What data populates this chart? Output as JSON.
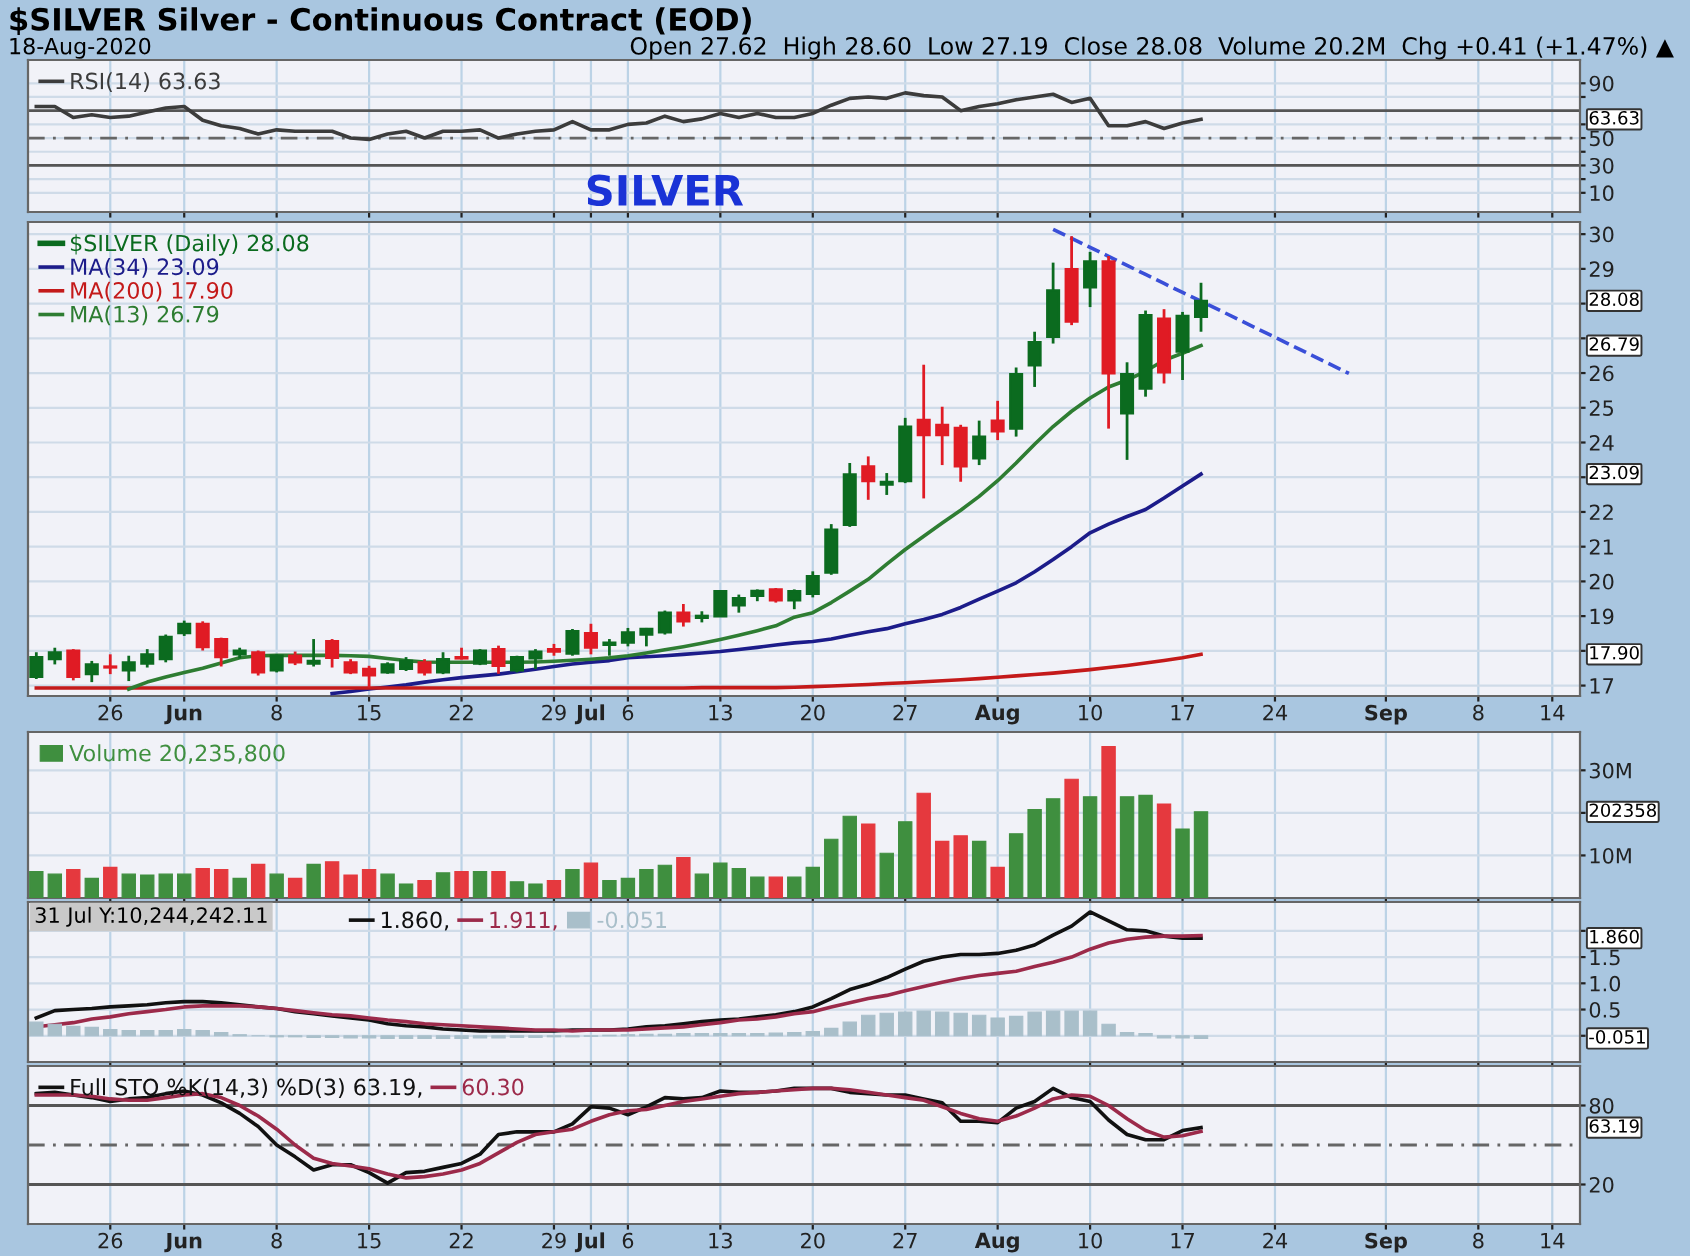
{
  "chart_data": [
    {
      "type": "line",
      "title": "$SILVER Silver - Continuous Contract (EOD)",
      "subtitle": "18-Aug-2020",
      "annotations": [
        "Open 27.62  High 28.60  Low 27.19  Close 28.08  Volume 20.2M  Chg +0.41 (+1.47%) ▲",
        "63.63"
      ],
      "categories": [
        null,
        null,
        null,
        null,
        null,
        null,
        null,
        null,
        null,
        null,
        null,
        null,
        null,
        null,
        null,
        null,
        null,
        null,
        null,
        null,
        null,
        null,
        null,
        null,
        null,
        null,
        null,
        null,
        null,
        null,
        null,
        null,
        null,
        null,
        null,
        null,
        null,
        null,
        null,
        null,
        null,
        null,
        null,
        null,
        null,
        null,
        null,
        null,
        null,
        null,
        null,
        null,
        null,
        null,
        null,
        null,
        null,
        null,
        null,
        null,
        null,
        null,
        null,
        null,
        null,
        null,
        null,
        null,
        null,
        null,
        null,
        null,
        null,
        null,
        null,
        null,
        null,
        null,
        null,
        null,
        null,
        null,
        null,
        null
      ],
      "tick_labels": "y",
      "ylim": [
        -4,
        107
      ],
      "yticks": [
        10,
        {
          "value": 20,
          "label": null
        },
        30,
        {
          "value": 40,
          "label": null
        },
        50,
        {
          "value": 60,
          "label": null
        },
        {
          "value": 80,
          "label": null
        },
        90
      ],
      "grid": true,
      "legend": "top left",
      "ref_lines": [
        {
          "axis": "y",
          "value": 70,
          "color": "#555555",
          "line_style": "solid"
        },
        {
          "axis": "y",
          "value": 30,
          "color": "#555555",
          "line_style": "solid"
        },
        {
          "axis": "y",
          "value": 50,
          "color": "#666666",
          "line_style": "dashed"
        }
      ],
      "series": [
        {
          "type": "line",
          "name": "RSI(14) 63.63",
          "color": "#3c3c3c",
          "values": [
            73,
            73,
            65,
            67,
            65,
            66,
            69,
            72,
            73,
            63,
            59,
            57,
            53,
            56,
            55,
            55,
            55,
            50,
            49,
            53,
            55,
            50,
            55,
            55,
            56,
            50,
            53,
            55,
            56,
            62,
            56,
            56,
            60,
            61,
            66,
            62,
            64,
            68,
            65,
            68,
            65,
            65,
            68,
            74,
            79,
            80,
            79,
            83,
            81,
            80,
            70,
            73,
            75,
            78,
            80,
            82,
            76,
            79,
            59,
            59,
            62,
            57,
            61,
            63.63,
            null,
            null,
            null,
            null,
            null,
            null,
            null,
            null,
            null,
            null,
            null,
            null,
            null,
            null,
            null,
            null,
            null,
            null,
            null,
            null
          ]
        }
      ]
    },
    {
      "type": "candlestick",
      "title": "SILVER",
      "annotations": [
        "28.08",
        "26.79",
        "23.09",
        "17.90"
      ],
      "categories": [
        null,
        null,
        null,
        null,
        "26",
        null,
        null,
        null,
        "Jun",
        null,
        null,
        null,
        null,
        "8",
        null,
        null,
        null,
        null,
        "15",
        null,
        null,
        null,
        null,
        "22",
        null,
        null,
        null,
        null,
        "29",
        null,
        "Jul",
        null,
        "6",
        null,
        null,
        null,
        null,
        "13",
        null,
        null,
        null,
        null,
        "20",
        null,
        null,
        null,
        null,
        "27",
        null,
        null,
        null,
        null,
        "Aug",
        null,
        null,
        null,
        null,
        "10",
        null,
        null,
        null,
        null,
        "17",
        null,
        null,
        null,
        null,
        "24",
        null,
        null,
        null,
        null,
        null,
        "Sep",
        null,
        null,
        null,
        null,
        "8",
        null,
        null,
        null,
        "14",
        null
      ],
      "ylim": [
        16.7,
        30.35
      ],
      "yticks": [
        17,
        {
          "value": 18,
          "label": null
        },
        19,
        20,
        21,
        22,
        {
          "value": 23,
          "label": null
        },
        24,
        25,
        26,
        {
          "value": 27,
          "label": null
        },
        {
          "value": 28,
          "label": null
        },
        29,
        30
      ],
      "grid": true,
      "legend": "top left",
      "series": [
        {
          "type": "candlestick",
          "name": "$SILVER (Daily) 28.08",
          "color": "#0b6b1f",
          "colors": [
            "#0b6b1f",
            "#0b6b1f",
            "#e01b24",
            "#0b6b1f",
            "#e01b24",
            "#0b6b1f",
            "#0b6b1f",
            "#0b6b1f",
            "#0b6b1f",
            "#e01b24",
            "#e01b24",
            "#0b6b1f",
            "#e01b24",
            "#0b6b1f",
            "#e01b24",
            "#0b6b1f",
            "#e01b24",
            "#e01b24",
            "#e01b24",
            "#0b6b1f",
            "#0b6b1f",
            "#e01b24",
            "#0b6b1f",
            "#e01b24",
            "#0b6b1f",
            "#e01b24",
            "#0b6b1f",
            "#0b6b1f",
            "#e01b24",
            "#0b6b1f",
            "#e01b24",
            "#0b6b1f",
            "#0b6b1f",
            "#0b6b1f",
            "#0b6b1f",
            "#e01b24",
            "#0b6b1f",
            "#0b6b1f",
            "#0b6b1f",
            "#0b6b1f",
            "#e01b24",
            "#0b6b1f",
            "#0b6b1f",
            "#0b6b1f",
            "#0b6b1f",
            "#e01b24",
            "#0b6b1f",
            "#0b6b1f",
            "#e01b24",
            "#e01b24",
            "#e01b24",
            "#0b6b1f",
            "#e01b24",
            "#0b6b1f",
            "#0b6b1f",
            "#0b6b1f",
            "#e01b24",
            "#0b6b1f",
            "#e01b24",
            "#0b6b1f",
            "#0b6b1f",
            "#e01b24",
            "#0b6b1f",
            "#0b6b1f",
            null,
            null,
            null,
            null,
            null,
            null,
            null,
            null,
            null,
            null,
            null,
            null,
            null,
            null,
            null,
            null,
            null,
            null,
            null,
            null
          ],
          "ohlc": [
            [
              17.25,
              17.96,
              17.19,
              17.82
            ],
            [
              17.76,
              18.09,
              17.61,
              17.96
            ],
            [
              18.01,
              18.05,
              17.15,
              17.25
            ],
            [
              17.33,
              17.71,
              17.1,
              17.61
            ],
            [
              17.55,
              17.9,
              17.33,
              17.52
            ],
            [
              17.44,
              17.86,
              17.13,
              17.67
            ],
            [
              17.63,
              18.05,
              17.52,
              17.9
            ],
            [
              17.76,
              18.47,
              17.67,
              18.4
            ],
            [
              18.51,
              18.87,
              18.43,
              18.78
            ],
            [
              18.78,
              18.85,
              18.01,
              18.11
            ],
            [
              18.34,
              18.38,
              17.55,
              17.82
            ],
            [
              17.9,
              18.09,
              17.78,
              18.01
            ],
            [
              17.96,
              18.01,
              17.29,
              17.38
            ],
            [
              17.44,
              17.9,
              17.38,
              17.86
            ],
            [
              17.86,
              17.98,
              17.59,
              17.67
            ],
            [
              17.63,
              18.34,
              17.55,
              17.71
            ],
            [
              18.28,
              18.34,
              17.52,
              17.8
            ],
            [
              17.67,
              17.76,
              17.33,
              17.38
            ],
            [
              17.48,
              17.57,
              16.94,
              17.29
            ],
            [
              17.38,
              17.67,
              17.34,
              17.61
            ],
            [
              17.48,
              17.82,
              17.42,
              17.71
            ],
            [
              17.67,
              17.76,
              17.29,
              17.38
            ],
            [
              17.38,
              17.96,
              17.33,
              17.76
            ],
            [
              17.82,
              18.09,
              17.75,
              17.78
            ],
            [
              17.63,
              18.05,
              17.59,
              18.01
            ],
            [
              18.05,
              18.15,
              17.34,
              17.57
            ],
            [
              17.44,
              17.86,
              17.38,
              17.82
            ],
            [
              17.78,
              18.05,
              17.48,
              17.98
            ],
            [
              18.05,
              18.2,
              17.86,
              17.98
            ],
            [
              17.92,
              18.63,
              17.86,
              18.57
            ],
            [
              18.51,
              18.78,
              17.9,
              18.09
            ],
            [
              18.17,
              18.34,
              17.86,
              18.24
            ],
            [
              18.24,
              18.66,
              18.13,
              18.53
            ],
            [
              18.47,
              18.66,
              18.13,
              18.63
            ],
            [
              18.53,
              19.16,
              18.47,
              19.1
            ],
            [
              19.1,
              19.35,
              18.7,
              18.85
            ],
            [
              18.95,
              19.14,
              18.82,
              19.01
            ],
            [
              18.99,
              19.72,
              18.99,
              19.72
            ],
            [
              19.31,
              19.62,
              19.1,
              19.52
            ],
            [
              19.58,
              19.77,
              19.43,
              19.73
            ],
            [
              19.77,
              19.81,
              19.39,
              19.45
            ],
            [
              19.45,
              19.77,
              19.2,
              19.72
            ],
            [
              19.64,
              20.29,
              19.54,
              20.15
            ],
            [
              20.25,
              21.65,
              20.19,
              21.49
            ],
            [
              21.63,
              23.41,
              21.57,
              23.08
            ],
            [
              23.31,
              23.6,
              22.35,
              22.89
            ],
            [
              22.79,
              23.12,
              22.49,
              22.87
            ],
            [
              22.89,
              24.71,
              22.83,
              24.46
            ],
            [
              24.65,
              26.24,
              22.39,
              24.21
            ],
            [
              24.51,
              25.03,
              23.35,
              24.21
            ],
            [
              24.42,
              24.51,
              22.87,
              23.31
            ],
            [
              23.54,
              24.63,
              23.35,
              24.17
            ],
            [
              24.63,
              25.2,
              24.07,
              24.32
            ],
            [
              24.4,
              26.16,
              24.17,
              25.97
            ],
            [
              26.22,
              27.19,
              25.6,
              26.89
            ],
            [
              27.04,
              29.18,
              26.85,
              28.38
            ],
            [
              28.99,
              29.94,
              27.38,
              27.48
            ],
            [
              28.47,
              29.49,
              27.9,
              29.22
            ],
            [
              29.22,
              29.37,
              24.4,
              25.99
            ],
            [
              24.84,
              26.31,
              23.5,
              25.97
            ],
            [
              25.55,
              27.8,
              25.32,
              27.67
            ],
            [
              27.57,
              27.84,
              25.7,
              26.02
            ],
            [
              26.62,
              27.76,
              25.8,
              27.65
            ],
            [
              27.62,
              28.6,
              27.19,
              28.08
            ],
            null,
            null,
            null,
            null,
            null,
            null,
            null,
            null,
            null,
            null,
            null,
            null,
            null,
            null,
            null,
            null,
            null,
            null,
            null,
            null
          ]
        },
        {
          "type": "line",
          "name": "MA(34) 23.09",
          "color": "#1c1c8a",
          "values": [
            null,
            null,
            null,
            null,
            null,
            null,
            null,
            null,
            null,
            null,
            null,
            null,
            null,
            null,
            null,
            null,
            16.77,
            16.83,
            16.9,
            16.96,
            17.02,
            17.1,
            17.17,
            17.23,
            17.28,
            17.33,
            17.4,
            17.47,
            17.55,
            17.62,
            17.67,
            17.72,
            17.8,
            17.83,
            17.86,
            17.9,
            17.94,
            17.98,
            18.04,
            18.1,
            18.17,
            18.23,
            18.27,
            18.34,
            18.45,
            18.55,
            18.64,
            18.78,
            18.9,
            19.05,
            19.25,
            19.49,
            19.72,
            19.96,
            20.28,
            20.63,
            21.0,
            21.4,
            21.65,
            21.87,
            22.07,
            22.4,
            22.75,
            23.09,
            null,
            null,
            null,
            null,
            null,
            null,
            null,
            null,
            null,
            null,
            null,
            null,
            null,
            null,
            null,
            null,
            null,
            null,
            null,
            null
          ]
        },
        {
          "type": "line",
          "name": "MA(200) 17.90",
          "color": "#c41a1a",
          "values": [
            16.93,
            16.93,
            16.93,
            16.93,
            16.93,
            16.93,
            16.93,
            16.93,
            16.93,
            16.93,
            16.93,
            16.93,
            16.93,
            16.93,
            16.93,
            16.93,
            16.93,
            16.93,
            16.93,
            16.93,
            16.93,
            16.93,
            16.93,
            16.93,
            16.93,
            16.93,
            16.93,
            16.93,
            16.93,
            16.93,
            16.93,
            16.93,
            16.93,
            16.93,
            16.93,
            16.93,
            16.94,
            16.94,
            16.94,
            16.94,
            16.94,
            16.95,
            16.97,
            16.99,
            17.01,
            17.03,
            17.06,
            17.08,
            17.11,
            17.14,
            17.17,
            17.2,
            17.24,
            17.28,
            17.32,
            17.36,
            17.41,
            17.46,
            17.52,
            17.58,
            17.65,
            17.72,
            17.8,
            17.9,
            null,
            null,
            null,
            null,
            null,
            null,
            null,
            null,
            null,
            null,
            null,
            null,
            null,
            null,
            null,
            null,
            null,
            null,
            null,
            null
          ]
        },
        {
          "type": "line",
          "name": "MA(13) 26.79",
          "color": "#2e7d32",
          "values": [
            null,
            null,
            null,
            null,
            null,
            16.9,
            17.1,
            17.25,
            17.38,
            17.5,
            17.65,
            17.8,
            17.86,
            17.87,
            17.87,
            17.87,
            17.87,
            17.86,
            17.84,
            17.78,
            17.72,
            17.68,
            17.67,
            17.67,
            17.67,
            17.67,
            17.67,
            17.68,
            17.7,
            17.73,
            17.76,
            17.8,
            17.86,
            17.94,
            18.03,
            18.12,
            18.22,
            18.33,
            18.45,
            18.58,
            18.72,
            18.97,
            19.1,
            19.39,
            19.72,
            20.06,
            20.5,
            20.92,
            21.3,
            21.68,
            22.05,
            22.45,
            22.9,
            23.41,
            23.95,
            24.46,
            24.9,
            25.28,
            25.6,
            25.8,
            26.05,
            26.37,
            26.57,
            26.79,
            null,
            null,
            null,
            null,
            null,
            null,
            null,
            null,
            null,
            null,
            null,
            null,
            null,
            null,
            null,
            null,
            null,
            null,
            null,
            null
          ]
        },
        {
          "type": "line",
          "color": "#3a4fd8",
          "line_style": "dashed",
          "values": [
            null,
            null,
            null,
            null,
            null,
            null,
            null,
            null,
            null,
            null,
            null,
            null,
            null,
            null,
            null,
            null,
            null,
            null,
            null,
            null,
            null,
            null,
            null,
            null,
            null,
            null,
            null,
            null,
            null,
            null,
            null,
            null,
            null,
            null,
            null,
            null,
            null,
            null,
            null,
            null,
            null,
            null,
            null,
            null,
            null,
            null,
            null,
            null,
            null,
            null,
            null,
            null,
            null,
            null,
            null,
            30.14,
            29.88,
            29.62,
            29.36,
            29.1,
            28.84,
            28.58,
            28.32,
            28.07,
            27.81,
            27.55,
            27.29,
            27.03,
            26.77,
            26.51,
            26.25,
            25.99,
            null,
            null,
            null,
            null,
            null,
            null,
            null,
            null,
            null,
            null,
            null,
            null
          ]
        }
      ]
    },
    {
      "type": "bar",
      "annotations": [
        "202358"
      ],
      "categories": [
        null,
        null,
        null,
        null,
        null,
        null,
        null,
        null,
        null,
        null,
        null,
        null,
        null,
        null,
        null,
        null,
        null,
        null,
        null,
        null,
        null,
        null,
        null,
        null,
        null,
        null,
        null,
        null,
        null,
        null,
        null,
        null,
        null,
        null,
        null,
        null,
        null,
        null,
        null,
        null,
        null,
        null,
        null,
        null,
        null,
        null,
        null,
        null,
        null,
        null,
        null,
        null,
        null,
        null,
        null,
        null,
        null,
        null,
        null,
        null,
        null,
        null,
        null,
        null,
        null,
        null,
        null,
        null,
        null,
        null,
        null,
        null,
        null,
        null,
        null,
        null,
        null,
        null,
        null,
        null,
        null,
        null,
        null,
        null
      ],
      "tick_labels": "y",
      "ylim": [
        0,
        39
      ],
      "yticks": [
        {
          "value": 10,
          "label": "10M"
        },
        {
          "value": 20,
          "label": null
        },
        {
          "value": 30,
          "label": "30M"
        }
      ],
      "grid": true,
      "legend": "top left",
      "series": [
        {
          "type": "bar",
          "name": "Volume 20,235,800",
          "color": "#3f8f3f",
          "colors": [
            "#3f8f3f",
            "#3f8f3f",
            "#e5393e",
            "#3f8f3f",
            "#e5393e",
            "#3f8f3f",
            "#3f8f3f",
            "#3f8f3f",
            "#3f8f3f",
            "#e5393e",
            "#e5393e",
            "#3f8f3f",
            "#e5393e",
            "#3f8f3f",
            "#e5393e",
            "#3f8f3f",
            "#e5393e",
            "#e5393e",
            "#e5393e",
            "#3f8f3f",
            "#3f8f3f",
            "#e5393e",
            "#3f8f3f",
            "#e5393e",
            "#3f8f3f",
            "#e5393e",
            "#3f8f3f",
            "#3f8f3f",
            "#e5393e",
            "#3f8f3f",
            "#e5393e",
            "#3f8f3f",
            "#3f8f3f",
            "#3f8f3f",
            "#3f8f3f",
            "#e5393e",
            "#3f8f3f",
            "#3f8f3f",
            "#3f8f3f",
            "#3f8f3f",
            "#e5393e",
            "#3f8f3f",
            "#3f8f3f",
            "#3f8f3f",
            "#3f8f3f",
            "#e5393e",
            "#3f8f3f",
            "#3f8f3f",
            "#e5393e",
            "#e5393e",
            "#e5393e",
            "#3f8f3f",
            "#e5393e",
            "#3f8f3f",
            "#3f8f3f",
            "#3f8f3f",
            "#e5393e",
            "#3f8f3f",
            "#e5393e",
            "#3f8f3f",
            "#3f8f3f",
            "#e5393e",
            "#3f8f3f",
            "#3f8f3f",
            null,
            null,
            null,
            null,
            null,
            null,
            null,
            null,
            null,
            null,
            null,
            null,
            null,
            null,
            null,
            null,
            null,
            null,
            null,
            null
          ],
          "values": [
            6.2,
            5.6,
            6.7,
            4.6,
            7.2,
            5.6,
            5.4,
            5.6,
            5.6,
            6.9,
            6.7,
            4.6,
            7.9,
            5.6,
            4.6,
            7.9,
            8.5,
            5.4,
            6.7,
            5.6,
            3.3,
            4.1,
            5.9,
            6.2,
            6.2,
            6.2,
            3.8,
            3.3,
            4.1,
            6.7,
            8.2,
            4.1,
            4.6,
            6.7,
            7.7,
            9.5,
            5.6,
            8.2,
            6.9,
            4.9,
            4.9,
            4.9,
            7.2,
            13.8,
            19.2,
            17.4,
            10.5,
            17.9,
            24.6,
            13.3,
            14.6,
            13.3,
            7.2,
            15.1,
            20.8,
            23.3,
            27.9,
            23.8,
            35.6,
            23.8,
            24.1,
            22.1,
            16.2,
            20.2358,
            null,
            null,
            null,
            null,
            null,
            null,
            null,
            null,
            null,
            null,
            null,
            null,
            null,
            null,
            null,
            null,
            null,
            null,
            null,
            null
          ]
        }
      ]
    },
    {
      "type": "line",
      "annotations": [
        "31 Jul Y:10,244,242.11",
        "1.860",
        "-0.051"
      ],
      "categories": [
        null,
        null,
        null,
        null,
        null,
        null,
        null,
        null,
        null,
        null,
        null,
        null,
        null,
        null,
        null,
        null,
        null,
        null,
        null,
        null,
        null,
        null,
        null,
        null,
        null,
        null,
        null,
        null,
        null,
        null,
        null,
        null,
        null,
        null,
        null,
        null,
        null,
        null,
        null,
        null,
        null,
        null,
        null,
        null,
        null,
        null,
        null,
        null,
        null,
        null,
        null,
        null,
        null,
        null,
        null,
        null,
        null,
        null,
        null,
        null,
        null,
        null,
        null,
        null,
        null,
        null,
        null,
        null,
        null,
        null,
        null,
        null,
        null,
        null,
        null,
        null,
        null,
        null,
        null,
        null,
        null,
        null,
        null,
        null
      ],
      "tick_labels": "y",
      "ylim": [
        -0.5,
        2.55
      ],
      "yticks": [
        {
          "value": 0,
          "label": null
        },
        0.5,
        {
          "value": 1,
          "label": "1.0"
        },
        1.5,
        {
          "value": 2,
          "label": null
        }
      ],
      "grid": true,
      "legend": "top left",
      "series": [
        {
          "type": "line",
          "name": "1.860,",
          "color": "#111111",
          "values": [
            0.34,
            0.48,
            0.5,
            0.52,
            0.55,
            0.57,
            0.59,
            0.63,
            0.65,
            0.65,
            0.63,
            0.59,
            0.55,
            0.52,
            0.46,
            0.42,
            0.38,
            0.34,
            0.3,
            0.23,
            0.19,
            0.17,
            0.13,
            0.11,
            0.09,
            0.09,
            0.09,
            0.09,
            0.09,
            0.11,
            0.11,
            0.11,
            0.13,
            0.17,
            0.19,
            0.23,
            0.27,
            0.3,
            0.32,
            0.36,
            0.4,
            0.46,
            0.55,
            0.71,
            0.88,
            0.98,
            1.11,
            1.27,
            1.42,
            1.5,
            1.55,
            1.55,
            1.57,
            1.63,
            1.73,
            1.92,
            2.09,
            2.36,
            2.19,
            2.02,
            2.0,
            1.9,
            1.86,
            1.86,
            null,
            null,
            null,
            null,
            null,
            null,
            null,
            null,
            null,
            null,
            null,
            null,
            null,
            null,
            null,
            null,
            null,
            null,
            null,
            null
          ]
        },
        {
          "type": "line",
          "name": "1.911,",
          "color": "#9c2a4a",
          "values": [
            0.17,
            0.21,
            0.25,
            0.32,
            0.36,
            0.42,
            0.46,
            0.5,
            0.55,
            0.57,
            0.57,
            0.57,
            0.55,
            0.52,
            0.48,
            0.44,
            0.4,
            0.38,
            0.34,
            0.3,
            0.27,
            0.23,
            0.21,
            0.19,
            0.17,
            0.15,
            0.13,
            0.11,
            0.11,
            0.09,
            0.11,
            0.11,
            0.11,
            0.13,
            0.15,
            0.17,
            0.21,
            0.25,
            0.3,
            0.32,
            0.36,
            0.42,
            0.46,
            0.55,
            0.63,
            0.71,
            0.77,
            0.86,
            0.94,
            1.02,
            1.09,
            1.15,
            1.19,
            1.23,
            1.32,
            1.4,
            1.5,
            1.65,
            1.77,
            1.84,
            1.88,
            1.9,
            1.9,
            1.911,
            null,
            null,
            null,
            null,
            null,
            null,
            null,
            null,
            null,
            null,
            null,
            null,
            null,
            null,
            null,
            null,
            null,
            null,
            null,
            null
          ]
        },
        {
          "type": "bar",
          "name": "-0.051",
          "color": "#a9bfca",
          "values": [
            0.26,
            0.22,
            0.18,
            0.16,
            0.12,
            0.1,
            0.1,
            0.1,
            0.12,
            0.1,
            0.06,
            0.02,
            0,
            -0.02,
            -0.02,
            -0.03,
            -0.03,
            -0.04,
            -0.04,
            -0.05,
            -0.05,
            -0.05,
            -0.05,
            -0.05,
            -0.04,
            -0.04,
            -0.03,
            -0.03,
            -0.02,
            -0.02,
            -0.01,
            0.01,
            0.02,
            0.03,
            0.03,
            0.04,
            0.04,
            0.04,
            0.04,
            0.04,
            0.05,
            0.06,
            0.08,
            0.14,
            0.26,
            0.39,
            0.43,
            0.45,
            0.47,
            0.45,
            0.43,
            0.39,
            0.34,
            0.37,
            0.45,
            0.47,
            0.47,
            0.47,
            0.22,
            0.06,
            0.04,
            -0.04,
            -0.04,
            -0.051,
            null,
            null,
            null,
            null,
            null,
            null,
            null,
            null,
            null,
            null,
            null,
            null,
            null,
            null,
            null,
            null,
            null,
            null,
            null,
            null
          ]
        }
      ]
    },
    {
      "type": "line",
      "annotations": [
        "63.19"
      ],
      "categories": [
        null,
        null,
        null,
        null,
        "26",
        null,
        null,
        null,
        "Jun",
        null,
        null,
        null,
        null,
        "8",
        null,
        null,
        null,
        null,
        "15",
        null,
        null,
        null,
        null,
        "22",
        null,
        null,
        null,
        null,
        "29",
        null,
        "Jul",
        null,
        "6",
        null,
        null,
        null,
        null,
        "13",
        null,
        null,
        null,
        null,
        "20",
        null,
        null,
        null,
        null,
        "27",
        null,
        null,
        null,
        null,
        "Aug",
        null,
        null,
        null,
        null,
        "10",
        null,
        null,
        null,
        null,
        "17",
        null,
        null,
        null,
        null,
        "24",
        null,
        null,
        null,
        null,
        null,
        "Sep",
        null,
        null,
        null,
        null,
        "8",
        null,
        null,
        null,
        "14",
        null
      ],
      "ylim": [
        -10,
        110
      ],
      "yticks": [
        20,
        80
      ],
      "grid": true,
      "legend": "top left",
      "ref_lines": [
        {
          "axis": "y",
          "value": 80,
          "color": "#555555",
          "line_style": "solid"
        },
        {
          "axis": "y",
          "value": 20,
          "color": "#555555",
          "line_style": "solid"
        },
        {
          "axis": "y",
          "value": 50,
          "color": "#666666",
          "line_style": "dashed"
        }
      ],
      "series": [
        {
          "type": "line",
          "name": "Full STO %K(14,3) %D(3) 63.19,",
          "color": "#111111",
          "values": [
            89,
            90,
            88,
            86,
            83,
            85,
            86,
            89,
            91,
            88,
            82,
            74,
            64,
            50,
            41,
            31,
            35,
            35,
            29,
            21,
            29,
            30,
            33,
            36,
            43,
            58,
            60,
            60,
            60,
            66,
            79,
            78,
            73,
            79,
            86,
            85,
            86,
            91,
            90,
            90,
            91,
            93,
            93,
            93,
            90,
            89,
            88,
            88,
            85,
            82,
            68,
            68,
            67,
            78,
            83,
            93,
            86,
            83,
            69,
            58,
            54,
            54,
            61,
            63.19,
            null,
            null,
            null,
            null,
            null,
            null,
            null,
            null,
            null,
            null,
            null,
            null,
            null,
            null,
            null,
            null,
            null,
            null,
            null,
            null
          ]
        },
        {
          "type": "line",
          "name": "60.30",
          "color": "#9c2a4a",
          "values": [
            88,
            88,
            88,
            87,
            85,
            84,
            84,
            86,
            88,
            89,
            86,
            80,
            72,
            62,
            50,
            40,
            36,
            34,
            32,
            28,
            25,
            26,
            28,
            31,
            36,
            44,
            52,
            58,
            60,
            62,
            68,
            73,
            76,
            77,
            80,
            83,
            85,
            87,
            89,
            90,
            91,
            92,
            93,
            93,
            92,
            90,
            88,
            86,
            84,
            79,
            74,
            70,
            68,
            72,
            78,
            85,
            88,
            87,
            80,
            70,
            61,
            56,
            57,
            60.3,
            null,
            null,
            null,
            null,
            null,
            null,
            null,
            null,
            null,
            null,
            null,
            null,
            null,
            null,
            null,
            null,
            null,
            null,
            null,
            null
          ]
        }
      ]
    }
  ]
}
